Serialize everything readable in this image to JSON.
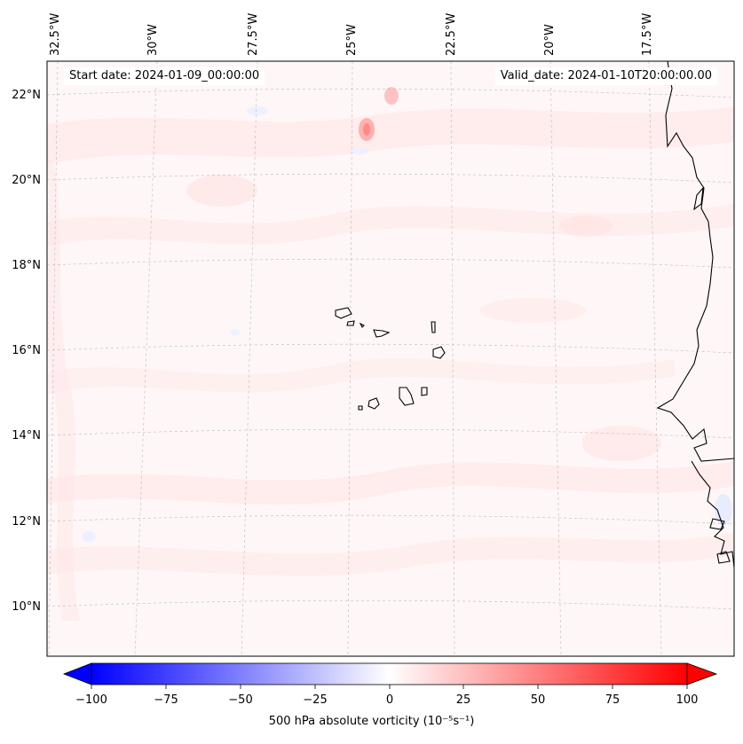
{
  "annotations": {
    "start_date": "Start date: 2024-01-09_00:00:00",
    "valid_date": "Valid_date: 2024-01-10T20:00:00.00"
  },
  "map": {
    "longitude_labels": [
      "32.5°W",
      "30°W",
      "27.5°W",
      "25°W",
      "22.5°W",
      "20°W",
      "17.5°W"
    ],
    "latitude_labels": [
      "22°N",
      "20°N",
      "18°N",
      "16°N",
      "14°N",
      "12°N",
      "10°N"
    ],
    "gridlines": true,
    "region": "Cape Verde and West African coast"
  },
  "colorbar": {
    "label": "500 hPa absolute vorticity (10⁻⁵s⁻¹)",
    "min": -100,
    "max": 100,
    "ticks": [
      "−100",
      "−75",
      "−50",
      "−25",
      "0",
      "25",
      "50",
      "75",
      "100"
    ],
    "colormap": "bwr",
    "low_color": "#0000ff",
    "mid_color": "#ffffff",
    "high_color": "#ff0000",
    "extend": "both"
  }
}
